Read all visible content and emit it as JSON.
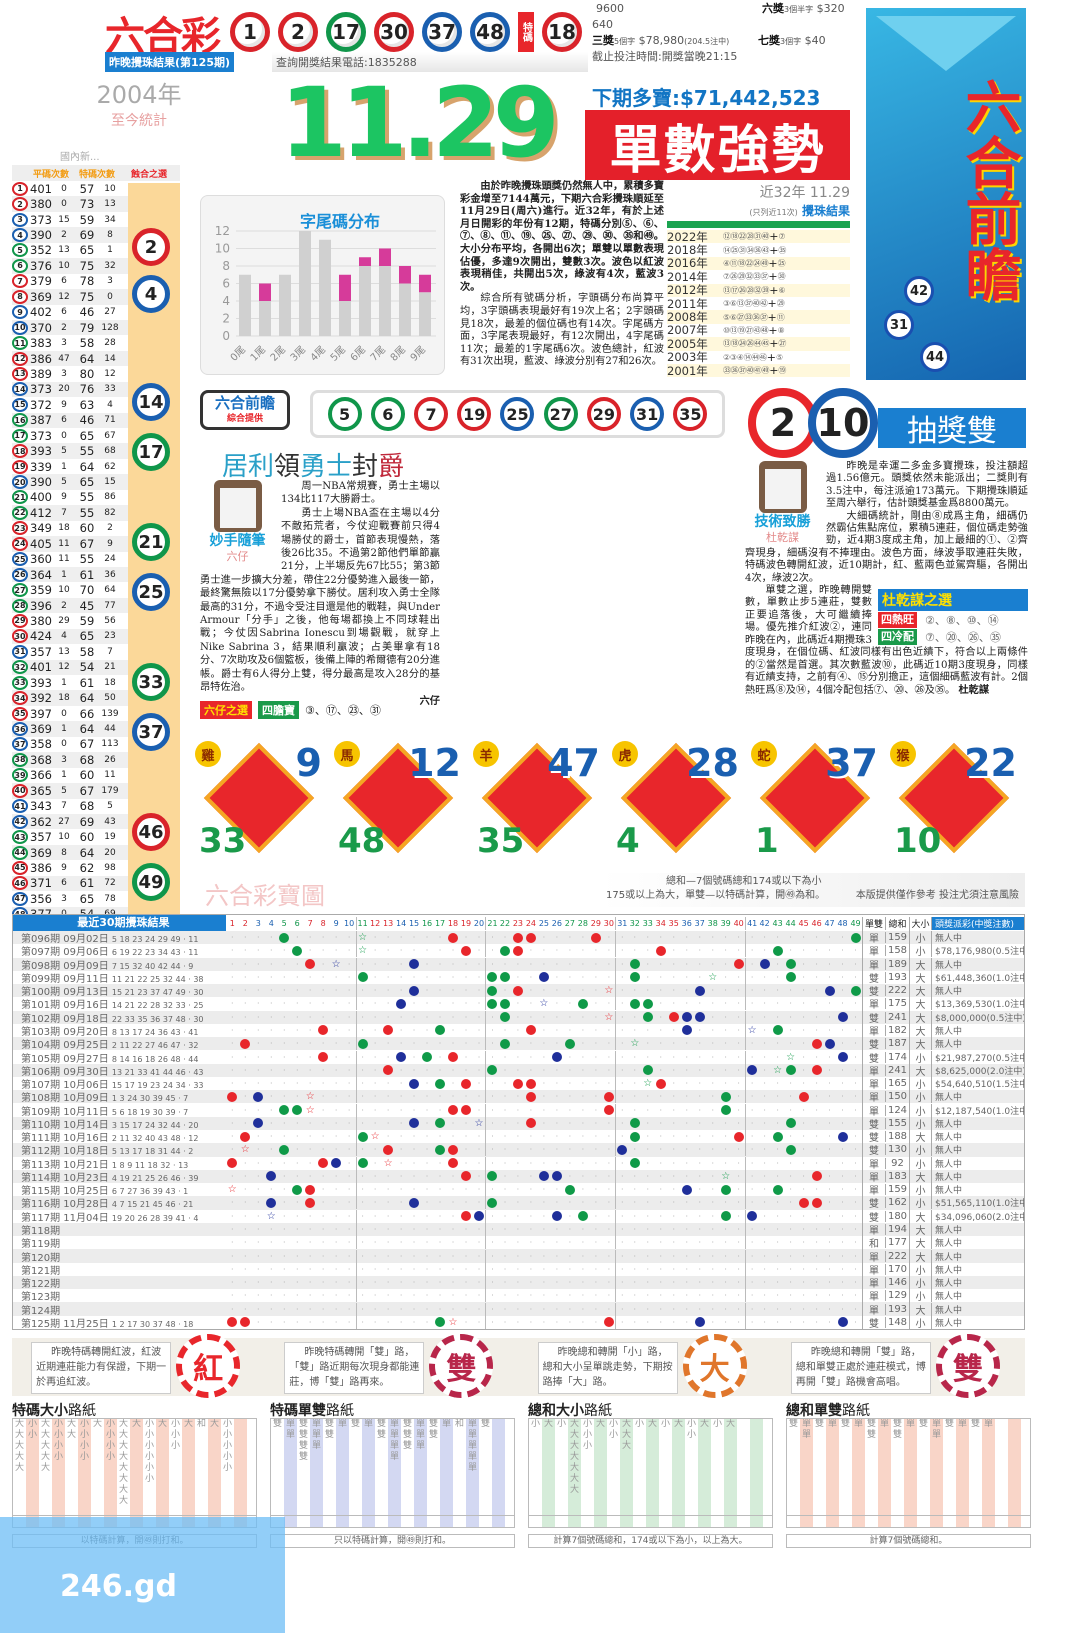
{
  "header": {
    "logo": "六合彩",
    "draw_balls": [
      {
        "n": "1",
        "c": "red"
      },
      {
        "n": "2",
        "c": "red"
      },
      {
        "n": "17",
        "c": "green"
      },
      {
        "n": "30",
        "c": "red"
      },
      {
        "n": "37",
        "c": "blue"
      },
      {
        "n": "48",
        "c": "blue"
      }
    ],
    "special_label": "特碼",
    "special_ball": {
      "n": "18",
      "c": "red"
    },
    "last_draw_label": "昨晚攪珠結果(第125期)",
    "phone": "查詢開獎結果電話:1835288",
    "prizes": [
      {
        "name": "",
        "desc": "",
        "amount": "9600"
      },
      {
        "name": "",
        "desc": "",
        "amount": "640"
      },
      {
        "name": "三獎",
        "desc": "5個字",
        "amount": "$78,980",
        "note": "(204.5注中)"
      },
      {
        "name": "六獎",
        "desc": "3個半字",
        "amount": "$320"
      },
      {
        "name": "七獎",
        "desc": "3個字",
        "amount": "$40"
      }
    ],
    "deadline": "截止投注時間:開獎當晚21:15"
  },
  "stats_box": {
    "year": "2004年",
    "sub": "至今統計",
    "faint": "國內新..."
  },
  "headline": {
    "date": "11.29",
    "jackpot": "下期多寶:$71,442,523",
    "banner": "單數強勢"
  },
  "right_banner": {
    "title": "六合前瞻",
    "balls": [
      "42",
      "31",
      "44"
    ]
  },
  "stats": {
    "headers": [
      "平碼次數",
      "特碼次數",
      "蝕合之選"
    ],
    "rows": [
      [
        "1",
        "401",
        "0",
        "57",
        "10"
      ],
      [
        "2",
        "380",
        "0",
        "73",
        "13"
      ],
      [
        "3",
        "373",
        "15",
        "59",
        "34"
      ],
      [
        "4",
        "390",
        "2",
        "69",
        "8"
      ],
      [
        "5",
        "352",
        "13",
        "65",
        "1"
      ],
      [
        "6",
        "376",
        "10",
        "75",
        "32"
      ],
      [
        "7",
        "379",
        "6",
        "78",
        "3"
      ],
      [
        "8",
        "369",
        "12",
        "75",
        "0"
      ],
      [
        "9",
        "402",
        "6",
        "46",
        "27"
      ],
      [
        "10",
        "370",
        "2",
        "79",
        "128"
      ],
      [
        "11",
        "383",
        "3",
        "58",
        "28"
      ],
      [
        "12",
        "386",
        "47",
        "64",
        "14"
      ],
      [
        "13",
        "389",
        "3",
        "80",
        "12"
      ],
      [
        "14",
        "373",
        "20",
        "76",
        "33"
      ],
      [
        "15",
        "372",
        "9",
        "63",
        "4"
      ],
      [
        "16",
        "387",
        "6",
        "46",
        "71"
      ],
      [
        "17",
        "373",
        "0",
        "65",
        "67"
      ],
      [
        "18",
        "393",
        "5",
        "55",
        "68"
      ],
      [
        "19",
        "339",
        "1",
        "64",
        "62"
      ],
      [
        "20",
        "390",
        "5",
        "65",
        "15"
      ],
      [
        "21",
        "400",
        "9",
        "55",
        "86"
      ],
      [
        "22",
        "412",
        "7",
        "55",
        "82"
      ],
      [
        "23",
        "349",
        "18",
        "60",
        "2"
      ],
      [
        "24",
        "405",
        "11",
        "67",
        "9"
      ],
      [
        "25",
        "360",
        "11",
        "55",
        "24"
      ],
      [
        "26",
        "364",
        "1",
        "61",
        "36"
      ],
      [
        "27",
        "359",
        "10",
        "70",
        "64"
      ],
      [
        "28",
        "396",
        "2",
        "45",
        "77"
      ],
      [
        "29",
        "380",
        "29",
        "59",
        "56"
      ],
      [
        "30",
        "424",
        "4",
        "65",
        "23"
      ],
      [
        "31",
        "357",
        "13",
        "58",
        "7"
      ],
      [
        "32",
        "401",
        "12",
        "54",
        "21"
      ],
      [
        "33",
        "393",
        "1",
        "61",
        "18"
      ],
      [
        "34",
        "392",
        "18",
        "64",
        "50"
      ],
      [
        "35",
        "397",
        "0",
        "66",
        "139"
      ],
      [
        "36",
        "369",
        "1",
        "64",
        "44"
      ],
      [
        "37",
        "358",
        "0",
        "67",
        "113"
      ],
      [
        "38",
        "368",
        "3",
        "68",
        "26"
      ],
      [
        "39",
        "366",
        "1",
        "60",
        "11"
      ],
      [
        "40",
        "365",
        "5",
        "67",
        "179"
      ],
      [
        "41",
        "343",
        "7",
        "68",
        "5"
      ],
      [
        "42",
        "362",
        "27",
        "69",
        "43"
      ],
      [
        "43",
        "357",
        "10",
        "60",
        "19"
      ],
      [
        "44",
        "369",
        "8",
        "64",
        "20"
      ],
      [
        "45",
        "386",
        "9",
        "62",
        "98"
      ],
      [
        "46",
        "371",
        "6",
        "61",
        "72"
      ],
      [
        "47",
        "356",
        "3",
        "65",
        "78"
      ],
      [
        "48",
        "377",
        "0",
        "54",
        "69"
      ],
      [
        "49",
        "427",
        "25",
        "54",
        "6"
      ]
    ],
    "picks": [
      "2",
      "4",
      "14",
      "17",
      "21",
      "25",
      "33",
      "37",
      "46",
      "49"
    ]
  },
  "chart_data": {
    "type": "bar",
    "title": "字尾碼分布",
    "categories": [
      "0尾",
      "1尾",
      "2尾",
      "3尾",
      "4尾",
      "5尾",
      "6尾",
      "7尾",
      "8尾",
      "9尾"
    ],
    "series": [
      {
        "values": [
          7,
          4,
          7,
          12,
          11,
          4,
          8,
          8,
          6,
          5
        ],
        "color": "#d0d0d0"
      },
      {
        "values": [
          0,
          2,
          0,
          0,
          0,
          3,
          1,
          2,
          2,
          2
        ],
        "color": "#d63b9a"
      }
    ],
    "stacked": true,
    "ylim": [
      0,
      12
    ],
    "yticks": [
      0,
      2,
      4,
      6,
      8,
      10,
      12
    ],
    "grid": true
  },
  "article1": {
    "paragraphs": [
      "由於昨晚攪珠頭獎仍然無人中，累積多寶彩金增至7144萬元，下期六合彩攪珠順延至11月29日(周六)進行。近32年，有於上述月日開彩的年份有12期，特碼分別⑤、⑥、⑦、⑧、⑪、⑲、㉕、㉗、㉙、㉚、㉟和㊾。大小分布平均，各開出6次；單雙以單數表現佔優，多達9次開出，雙數3次。波色以紅波表現稍佳，共開出5次，綠波有4次，藍波3次。",
      "綜合所有號碼分析，字頭碼分布尚算平均，3字頭碼表現最好有19次上名；2字頭碼見18次，最差的個位碼也有14次。字尾碼方面，3字尾表現最好，有12次開出，4字尾碼11次；最差的1字尾碼6次。波色總計，紅波有31次出現，藍波、綠波分別有27和26次。"
    ]
  },
  "history": {
    "title": "近32年 11.29",
    "subtitle": "攪珠結果",
    "note": "(只列近11次)",
    "rows": [
      {
        "year": "2022年",
        "nums": "⑫⑱㉒㉘㉛㊵",
        "sp": "⑦"
      },
      {
        "year": "2018年",
        "nums": "⑭㉕㉛㉞㊱㊸",
        "sp": "㉟"
      },
      {
        "year": "2016年",
        "nums": "④⑪⑱㉒㉔㊾",
        "sp": "㉕"
      },
      {
        "year": "2014年",
        "nums": "⑦㉖㉙㉜㉝㊲",
        "sp": "㉚"
      },
      {
        "year": "2012年",
        "nums": "⑬⑰㉖㉘㉜㊴",
        "sp": "⑥"
      },
      {
        "year": "2011年",
        "nums": "③⑥⑬㊲㊵㊷",
        "sp": "㉙"
      },
      {
        "year": "2008年",
        "nums": "⑤⑥㉗㉝㊱㊲",
        "sp": "⑪"
      },
      {
        "year": "2007年",
        "nums": "⑩⑬⑲㉗㊸㊽",
        "sp": "⑧"
      },
      {
        "year": "2005年",
        "nums": "⑬⑱㉔㉖㊹㊺",
        "sp": "㉗"
      },
      {
        "year": "2003年",
        "nums": "②③④⑭㊹㊻",
        "sp": "⑤"
      },
      {
        "year": "2001年",
        "nums": "㉝㊱㊲㊵㊶㊾",
        "sp": "⑲"
      }
    ]
  },
  "qianzhan": {
    "label": "六合前瞻",
    "sub": "綜合提供",
    "balls": [
      "5",
      "6",
      "7",
      "19",
      "25",
      "27",
      "29",
      "31",
      "35"
    ]
  },
  "draw_pair": {
    "balls": [
      "2",
      "10"
    ],
    "title": "抽獎雙"
  },
  "article2": {
    "title_parts": [
      "居利",
      "領",
      "勇士",
      "封",
      "爵"
    ],
    "column": "妙手隨筆",
    "author": "六仔",
    "paragraphs": [
      "周一NBA常規賽，勇士主場以134比117大勝爵士。",
      "勇士上場NBA盃在主場以4分不敵拓荒者，今仗迎戰賽前只得4場勝仗的爵士，首節表現慢熱，落後26比35。不過第2節他們單節贏21分，上半場反先67比55；第3節勇士進一步擴大分差，帶住22分優勢進入最後一節，最終驚無險以17分優勢拿下勝仗。居利攻入勇士全隊最高的31分，不過令受注目還是他的戰鞋，與Under Armour「分手」之後，他每場都換上不同球鞋出戰；今仗因Sabrina Ionescu到場觀戰，就穿上Nike Sabrina 3，結果順利贏波；占美畢拿有18分、7次助攻及6個籃板，後備上陣的希爾德有20分進帳。爵士有6人得分上雙，得分最高是攻入28分的基昂特佐治。"
    ],
    "sign": "六仔",
    "pick_label": "六仔之選",
    "pick_type": "四膽寶",
    "pick_nums": "③、⑰、㉓、㉛"
  },
  "article3": {
    "column": "技術致勝",
    "author": "杜乾謀",
    "paragraphs": [
      "昨晚是幸運二多金多寶攪珠，投注額超過1.56億元。頭獎依然未能派出；二獎則有3.5注中，每注派逾173萬元。下期攪珠順延至周六舉行，估計頭獎基金爲8800萬元。",
      "大細碼統計，剛由⑧成爲主角，細碼仍然霸佔焦點席位，累積5連莊，個位碼走勢強勁，近4期3度成主角，加上最細的①、②齊齊現身，細碼沒有不捧理由。波色方面，綠波爭取連莊失敗，特碼波色轉開紅波，近10期計，紅、藍兩色並駕齊驅，各開出4次，綠波2次。",
      "單雙之選，昨晚轉開雙數，單數止步5連莊，雙數正要追落後，大可繼續捧場。優先推介紅波②，連同昨晚在內，此碼近4期攪珠3度現身，在個位碼、紅波同樣有出色近績下，符合以上兩條件的②當然是首選。其次數藍波⑩，此碼近10期3度現身，同樣有近績支持，之前有④、⑮分別擔正，這個細碼藍波有計。2個熱旺爲⑧及⑭，4個冷配包括⑦、⑳、㉖及㉟。"
    ],
    "sign": "杜乾謀",
    "pick_title": "杜乾謀之選",
    "hot_label": "四熱旺",
    "hot_nums": "②、⑧、⑩、⑭",
    "cold_label": "四冷配",
    "cold_nums": "⑦、⑳、㉖、㉟"
  },
  "zodiac": [
    {
      "animal": "雞",
      "main": "9",
      "sub": "33"
    },
    {
      "animal": "馬",
      "main": "12",
      "sub": "48"
    },
    {
      "animal": "羊",
      "main": "47",
      "sub": "35"
    },
    {
      "animal": "虎",
      "main": "28",
      "sub": "4"
    },
    {
      "animal": "蛇",
      "main": "37",
      "sub": "1"
    },
    {
      "animal": "猴",
      "main": "22",
      "sub": "10"
    }
  ],
  "board": {
    "title": "六合彩寶圖",
    "note1": "總和—7個號碼總和174或以下為小",
    "note2": "175或以上為大，單雙—以特碼計算，開㊾為和。",
    "disclaimer": "本版提供僅作參考 投注尤須注意風險",
    "header_label": "最近30期攪珠結果",
    "col_ds": "單雙",
    "col_sum": "總和",
    "col_bs": "大小",
    "col_pay": "頭獎派彩(中獎注數)",
    "colors": {
      "red": "#e8262b",
      "blue": "#1f2f9a",
      "green": "#0f9a48"
    },
    "rows": [
      {
        "p": "第096期",
        "d": "09月02日",
        "n": [
          5,
          18,
          23,
          24,
          29,
          49
        ],
        "s": 11,
        "ds": "單",
        "sum": "159",
        "bs": "小",
        "pay": "無人中"
      },
      {
        "p": "第097期",
        "d": "09月06日",
        "n": [
          6,
          19,
          22,
          23,
          34,
          43
        ],
        "s": 11,
        "ds": "單",
        "sum": "158",
        "bs": "小",
        "pay": "$78,176,980(0.5注中)"
      },
      {
        "p": "第098期",
        "d": "09月09日",
        "n": [
          7,
          15,
          32,
          40,
          42,
          44
        ],
        "s": 9,
        "ds": "單",
        "sum": "189",
        "bs": "大",
        "pay": "無人中"
      },
      {
        "p": "第099期",
        "d": "09月11日",
        "n": [
          11,
          21,
          22,
          25,
          32,
          44
        ],
        "s": 38,
        "ds": "雙",
        "sum": "193",
        "bs": "大",
        "pay": "$61,448,360(1.0注中)"
      },
      {
        "p": "第100期",
        "d": "09月13日",
        "n": [
          15,
          21,
          23,
          37,
          47,
          49
        ],
        "s": 30,
        "ds": "雙",
        "sum": "222",
        "bs": "大",
        "pay": "無人中"
      },
      {
        "p": "第101期",
        "d": "09月16日",
        "n": [
          14,
          21,
          22,
          28,
          32,
          33
        ],
        "s": 25,
        "ds": "單",
        "sum": "175",
        "bs": "大",
        "pay": "$13,369,530(1.0注中)"
      },
      {
        "p": "第102期",
        "d": "09月18日",
        "n": [
          22,
          33,
          35,
          36,
          37,
          48
        ],
        "s": 30,
        "ds": "雙",
        "sum": "241",
        "bs": "大",
        "pay": "$8,000,000(0.5注中)"
      },
      {
        "p": "第103期",
        "d": "09月20日",
        "n": [
          8,
          13,
          17,
          24,
          36,
          43
        ],
        "s": 41,
        "ds": "單",
        "sum": "182",
        "bs": "大",
        "pay": "無人中"
      },
      {
        "p": "第104期",
        "d": "09月25日",
        "n": [
          2,
          11,
          22,
          27,
          46,
          47
        ],
        "s": 32,
        "ds": "雙",
        "sum": "187",
        "bs": "大",
        "pay": "無人中"
      },
      {
        "p": "第105期",
        "d": "09月27日",
        "n": [
          8,
          14,
          16,
          18,
          26,
          48
        ],
        "s": 44,
        "ds": "雙",
        "sum": "174",
        "bs": "小",
        "pay": "$21,987,270(0.5注中)"
      },
      {
        "p": "第106期",
        "d": "09月30日",
        "n": [
          13,
          21,
          33,
          41,
          44,
          46
        ],
        "s": 43,
        "ds": "單",
        "sum": "241",
        "bs": "大",
        "pay": "$8,625,000(2.0注中)"
      },
      {
        "p": "第107期",
        "d": "10月06日",
        "n": [
          15,
          17,
          19,
          23,
          24,
          34
        ],
        "s": 33,
        "ds": "單",
        "sum": "165",
        "bs": "小",
        "pay": "$54,640,510(1.5注中)"
      },
      {
        "p": "第108期",
        "d": "10月09日",
        "n": [
          1,
          3,
          24,
          30,
          39,
          45
        ],
        "s": 7,
        "ds": "單",
        "sum": "150",
        "bs": "小",
        "pay": "無人中"
      },
      {
        "p": "第109期",
        "d": "10月11日",
        "n": [
          5,
          6,
          18,
          19,
          30,
          39
        ],
        "s": 7,
        "ds": "單",
        "sum": "124",
        "bs": "小",
        "pay": "$12,187,540(1.0注中)"
      },
      {
        "p": "第110期",
        "d": "10月14日",
        "n": [
          3,
          15,
          17,
          24,
          32,
          44
        ],
        "s": 20,
        "ds": "雙",
        "sum": "155",
        "bs": "小",
        "pay": "無人中"
      },
      {
        "p": "第111期",
        "d": "10月16日",
        "n": [
          2,
          11,
          32,
          40,
          43,
          48
        ],
        "s": 12,
        "ds": "雙",
        "sum": "188",
        "bs": "大",
        "pay": "無人中"
      },
      {
        "p": "第112期",
        "d": "10月18日",
        "n": [
          5,
          13,
          17,
          18,
          31,
          44
        ],
        "s": 2,
        "ds": "雙",
        "sum": "130",
        "bs": "小",
        "pay": "無人中"
      },
      {
        "p": "第113期",
        "d": "10月21日",
        "n": [
          1,
          8,
          9,
          11,
          18,
          32
        ],
        "s": 13,
        "ds": "單",
        "sum": "92",
        "bs": "小",
        "pay": "無人中"
      },
      {
        "p": "第114期",
        "d": "10月23日",
        "n": [
          4,
          19,
          21,
          25,
          26,
          46
        ],
        "s": 39,
        "ds": "單",
        "sum": "183",
        "bs": "大",
        "pay": "無人中"
      },
      {
        "p": "第115期",
        "d": "10月25日",
        "n": [
          6,
          7,
          27,
          36,
          39,
          43
        ],
        "s": 1,
        "ds": "單",
        "sum": "159",
        "bs": "小",
        "pay": "無人中"
      },
      {
        "p": "第116期",
        "d": "10月28日",
        "n": [
          4,
          7,
          15,
          21,
          45,
          46
        ],
        "s": 21,
        "ds": "雙",
        "sum": "162",
        "bs": "小",
        "pay": "$51,565,110(1.0注中)"
      },
      {
        "p": "第117期",
        "d": "11月04日",
        "n": [
          19,
          20,
          26,
          28,
          39,
          41
        ],
        "s": 4,
        "ds": "雙",
        "sum": "180",
        "bs": "大",
        "pay": "$34,096,060(2.0注中)"
      },
      {
        "p": "第118期",
        "d": "",
        "n": [],
        "s": null,
        "ds": "單",
        "sum": "194",
        "bs": "大",
        "pay": "無人中"
      },
      {
        "p": "第119期",
        "d": "",
        "n": [],
        "s": null,
        "ds": "和",
        "sum": "177",
        "bs": "大",
        "pay": "無人中"
      },
      {
        "p": "第120期",
        "d": "",
        "n": [],
        "s": null,
        "ds": "單",
        "sum": "222",
        "bs": "大",
        "pay": "無人中"
      },
      {
        "p": "第121期",
        "d": "",
        "n": [],
        "s": null,
        "ds": "單",
        "sum": "170",
        "bs": "小",
        "pay": "無人中"
      },
      {
        "p": "第122期",
        "d": "",
        "n": [],
        "s": null,
        "ds": "單",
        "sum": "146",
        "bs": "小",
        "pay": "無人中"
      },
      {
        "p": "第123期",
        "d": "",
        "n": [],
        "s": null,
        "ds": "單",
        "sum": "129",
        "bs": "小",
        "pay": "無人中"
      },
      {
        "p": "第124期",
        "d": "",
        "n": [],
        "s": null,
        "ds": "單",
        "sum": "193",
        "bs": "大",
        "pay": "無人中"
      },
      {
        "p": "第125期",
        "d": "11月25日",
        "n": [
          1,
          2,
          17,
          30,
          37,
          48
        ],
        "s": 18,
        "ds": "雙",
        "sum": "148",
        "bs": "小",
        "pay": "無人中"
      }
    ]
  },
  "cards": [
    {
      "text": "昨晚特碼轉開紅波，紅波近期連莊能力有保證，下期一於再追紅波。",
      "stamp": "紅",
      "color": "#e8262b"
    },
    {
      "text": "昨晚特碼轉開「雙」路，「雙」路近期每次現身都能連莊，博「雙」路再來。",
      "stamp": "雙",
      "color": "#b8264a"
    },
    {
      "text": "昨晚總和轉開「小」路，總和大小呈單跳走勢，下期按路捧「大」路。",
      "stamp": "大",
      "color": "#e0762b"
    },
    {
      "text": "昨晚總和轉開「雙」路，總和單雙正處於連莊模式，博再開「雙」路機會高唱。",
      "stamp": "雙",
      "color": "#b8264a"
    }
  ],
  "roads": [
    {
      "bold": "特碼大小",
      "rest": "路紙",
      "bg": "#f9d5c8",
      "foot": "以特碼計算，開㊾則打和。",
      "cols": [
        "大大大大大",
        "小小",
        "大大大大大",
        "小小小小",
        "大大",
        "小小小小",
        "大",
        "小小小小",
        "大大大大大大大大",
        "大",
        "小小小小小小",
        "大",
        "小小小",
        "大",
        "和",
        "大",
        "小小小小小"
      ]
    },
    {
      "bold": "特碼單雙",
      "rest": "路紙",
      "bg": "#d3d8f2",
      "foot": "只以特碼計算，開㊾則打和。",
      "cols": [
        "雙",
        "單單",
        "雙雙雙雙",
        "單單單",
        "雙雙",
        "單",
        "雙",
        "單",
        "雙雙",
        "單單單單",
        "雙雙雙",
        "單單單",
        "雙雙",
        "單",
        "和",
        "單單單單單",
        "雙"
      ]
    },
    {
      "bold": "總和大小",
      "rest": "路紙",
      "bg": "#d5ecd9",
      "foot": "計算7個號碼總和，174或以下為小，以上為大。",
      "cols": [
        "小",
        "大",
        "小",
        "大大大大大大大",
        "小小小",
        "大",
        "小小",
        "大大大",
        "小",
        "大",
        "小",
        "大",
        "小小",
        "大",
        "小",
        "大"
      ]
    },
    {
      "bold": "總和單雙",
      "rest": "路紙",
      "bg": "#f9d5c8",
      "foot": "計算7個號碼總和。",
      "cols": [
        "雙",
        "單單",
        "雙",
        "單",
        "雙",
        "單",
        "雙雙",
        "單",
        "雙雙",
        "單",
        "雙",
        "單單",
        "雙",
        "單",
        "雙",
        "單"
      ]
    }
  ],
  "watermark": "246.gd"
}
